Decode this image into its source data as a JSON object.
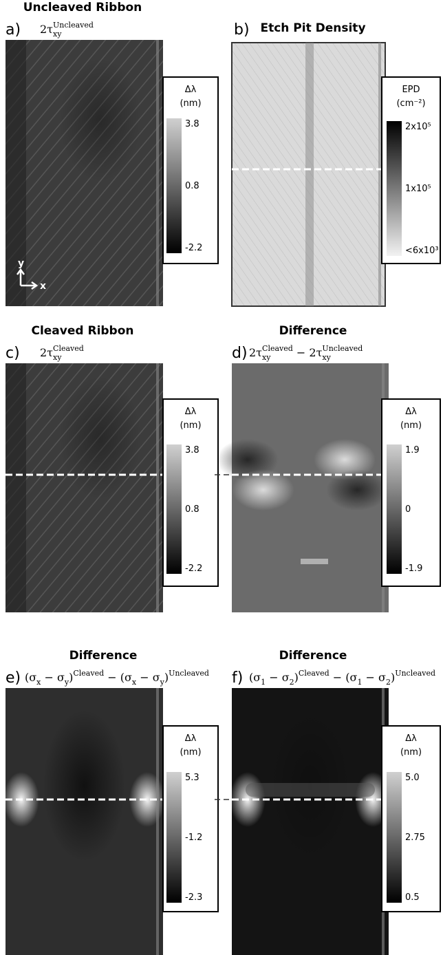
{
  "panels": [
    {
      "letter": "a)",
      "title": "Uncleaved Ribbon",
      "subtitle": [
        {
          "t": "2τ"
        },
        {
          "sub": "xy"
        },
        {
          "sup": "Uncleaved"
        }
      ],
      "axes_labels": [
        "y",
        "x"
      ],
      "colorbar": {
        "label": "Δλ",
        "unit": "(nm)",
        "ticks": [
          "3.8",
          "0.8",
          "-2.2"
        ]
      }
    },
    {
      "letter": "b)",
      "title": "Etch Pit Density",
      "colorbar": {
        "label": "EPD",
        "unit": "(cm⁻²)",
        "ticks": [
          "2x10⁵",
          "1x10⁵",
          "<6x10³"
        ]
      }
    },
    {
      "letter": "c)",
      "title": "Cleaved Ribbon",
      "subtitle": [
        {
          "t": "2τ"
        },
        {
          "sub": "xy"
        },
        {
          "sup": "Cleaved"
        }
      ],
      "colorbar": {
        "label": "Δλ",
        "unit": "(nm)",
        "ticks": [
          "3.8",
          "0.8",
          "-2.2"
        ]
      }
    },
    {
      "letter": "d)",
      "title": "Difference",
      "subtitle": [
        {
          "t": "2τ"
        },
        {
          "sub": "xy"
        },
        {
          "sup": "Cleaved"
        },
        {
          "t": " − 2τ"
        },
        {
          "sub": "xy"
        },
        {
          "sup": "Uncleaved"
        }
      ],
      "colorbar": {
        "label": "Δλ",
        "unit": "(nm)",
        "ticks": [
          "1.9",
          "0",
          "-1.9"
        ]
      }
    },
    {
      "letter": "e)",
      "title": "Difference",
      "subtitle": [
        {
          "t": "(σ"
        },
        {
          "sub": "x"
        },
        {
          "t": " − σ"
        },
        {
          "sub": "y"
        },
        {
          "t": ")"
        },
        {
          "sup": "Cleaved"
        },
        {
          "t": " − (σ"
        },
        {
          "sub": "x"
        },
        {
          "t": " − σ"
        },
        {
          "sub": "y"
        },
        {
          "t": ")"
        },
        {
          "sup": "Uncleaved"
        }
      ],
      "colorbar": {
        "label": "Δλ",
        "unit": "(nm)",
        "ticks": [
          "5.3",
          "-1.2",
          "-2.3"
        ]
      }
    },
    {
      "letter": "f)",
      "title": "Difference",
      "subtitle": [
        {
          "t": "(σ"
        },
        {
          "sub": "1"
        },
        {
          "t": " − σ"
        },
        {
          "sub": "2"
        },
        {
          "t": ")"
        },
        {
          "sup": "Cleaved"
        },
        {
          "t": " − (σ"
        },
        {
          "sub": "1"
        },
        {
          "t": " − σ"
        },
        {
          "sub": "2"
        },
        {
          "t": ")"
        },
        {
          "sup": "Uncleaved"
        }
      ],
      "colorbar": {
        "label": "Δλ",
        "unit": "(nm)",
        "ticks": [
          "5.0",
          "2.75",
          "0.5"
        ]
      }
    }
  ]
}
